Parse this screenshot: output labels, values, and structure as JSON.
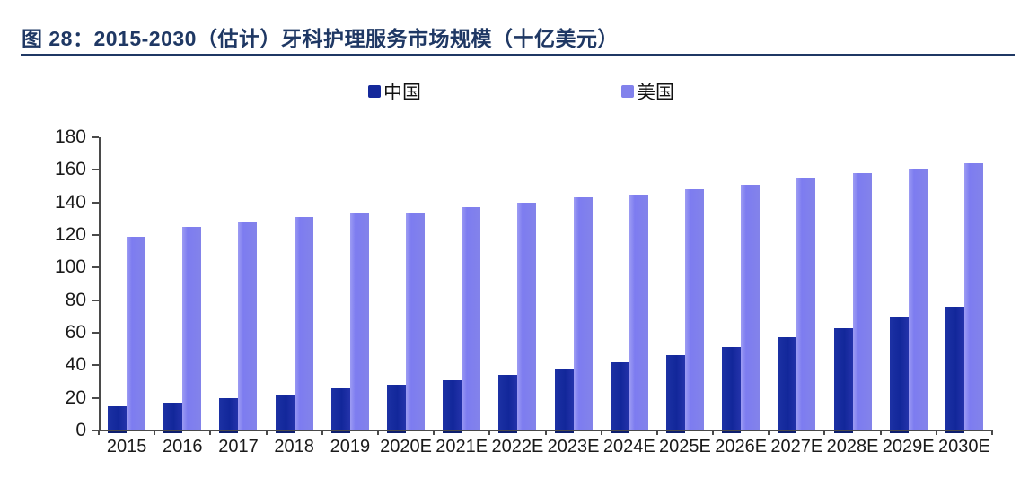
{
  "figure": {
    "title": "图 28：2015-2030（估计）牙科护理服务市场规模（十亿美元）"
  },
  "colors": {
    "title_navy": "#1F3864",
    "china_bar": "#15299B",
    "usa_bar": "#8282EC",
    "axis": "#4a4a4a",
    "tick_text": "#1a1a1a"
  },
  "legend": [
    {
      "label": "中国",
      "color": "#15299B",
      "swatch": "square-swatch-icon"
    },
    {
      "label": "美国",
      "color": "#8282EC",
      "swatch": "square-swatch-icon"
    }
  ],
  "chart_data": {
    "type": "bar",
    "title": "2015-2030（估计）牙科护理服务市场规模（十亿美元）",
    "xlabel": "",
    "ylabel": "",
    "categories": [
      "2015",
      "2016",
      "2017",
      "2018",
      "2019",
      "2020E",
      "2021E",
      "2022E",
      "2023E",
      "2024E",
      "2025E",
      "2026E",
      "2027E",
      "2028E",
      "2029E",
      "2030E"
    ],
    "series": [
      {
        "name": "中国",
        "color": "#15299B",
        "values": [
          15,
          17,
          20,
          22,
          26,
          28,
          31,
          34,
          38,
          42,
          46,
          51,
          57,
          63,
          70,
          76
        ]
      },
      {
        "name": "美国",
        "color": "#8282EC",
        "values": [
          119,
          125,
          128,
          131,
          134,
          134,
          137,
          140,
          143,
          145,
          148,
          151,
          155,
          158,
          161,
          164
        ]
      }
    ],
    "ylim": [
      0,
      180
    ],
    "yticks": [
      0,
      20,
      40,
      60,
      80,
      100,
      120,
      140,
      160,
      180
    ],
    "grid": false,
    "legend_position": "top"
  }
}
